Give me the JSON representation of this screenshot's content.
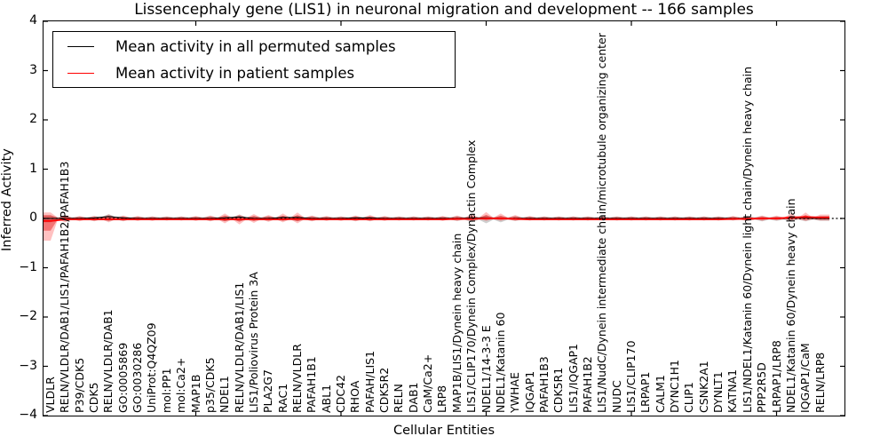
{
  "figure": {
    "title": "Lissencephaly gene (LIS1) in neuronal migration and development -- 166 samples",
    "xlabel": "Cellular Entities",
    "ylabel": "Inferred Activity"
  },
  "legend": {
    "entries": [
      {
        "label": "Mean activity in all permuted samples",
        "color": "#000000"
      },
      {
        "label": "Mean activity in patient samples",
        "color": "#ff0000"
      }
    ]
  },
  "chart_data": {
    "type": "line",
    "title": "Lissencephaly gene (LIS1) in neuronal migration and development -- 166 samples",
    "xlabel": "Cellular Entities",
    "ylabel": "Inferred Activity",
    "ylim": [
      -4,
      4
    ],
    "yticks": [
      4,
      3,
      2,
      1,
      0,
      -1,
      -2,
      -3,
      -4
    ],
    "ytick_labels": [
      "4",
      "3",
      "2",
      "1",
      "0",
      "−1",
      "−2",
      "−3",
      "−4"
    ],
    "xticks_every": 10,
    "xtick_positions": [
      10,
      20,
      30,
      40,
      50
    ],
    "grid": false,
    "zero_line": true,
    "legend_position": "upper left",
    "categories": [
      "VLDLR",
      "RELN/VLDLR/DAB1/LIS1/PAFAH1B2/PAFAH1B3",
      "P39/CDK5",
      "CDK5",
      "RELN/VLDLR/DAB1",
      "GO:0005869",
      "GO:0030286",
      "UniProt:Q4QZ09",
      "mol:PP1",
      "mol:Ca2+",
      "MAP1B",
      "p35/CDK5",
      "NDEL1",
      "RELN/VLDLR/DAB1/LIS1",
      "LIS1/Poliovirus Protein 3A",
      "PLA2G7",
      "RAC1",
      "RELN/VLDLR",
      "PAFAH1B1",
      "ABL1",
      "CDC42",
      "RHOA",
      "PAFAH/LIS1",
      "CDK5R2",
      "RELN",
      "DAB1",
      "CaM/Ca2+",
      "LRP8",
      "MAP1B/LIS1/Dynein heavy chain",
      "LIS1/CLIP170/Dynein Complex/Dynactin Complex",
      "NDEL1/14-3-3 E",
      "NDEL1/Katanin 60",
      "YWHAE",
      "IQGAP1",
      "PAFAH1B3",
      "CDK5R1",
      "LIS1/IQGAP1",
      "PAFAH1B2",
      "LIS1/NudC/Dynein intermediate chain/microtubule organizing center",
      "NUDC",
      "LIS1/CLIP170",
      "LRPAP1",
      "CALM1",
      "DYNC1H1",
      "CLIP1",
      "CSNK2A1",
      "DYNLT1",
      "KATNA1",
      "LIS1/NDEL1/Katanin 60/Dynein light chain/Dynein heavy chain",
      "PPP2R5D",
      "LRPAP1/LRP8",
      "NDEL1/Katanin 60/Dynein heavy chain",
      "IQGAP1/CaM",
      "RELN/LRP8"
    ],
    "series": [
      {
        "name": "Mean activity in all permuted samples",
        "color": "#000000",
        "values": [
          0.0,
          0.0,
          0.0,
          0.01,
          0.04,
          0.01,
          0.0,
          0.0,
          0.0,
          0.0,
          0.0,
          0.0,
          0.01,
          0.03,
          0.0,
          0.0,
          0.02,
          0.02,
          0.0,
          0.0,
          0.0,
          0.01,
          0.01,
          0.0,
          0.0,
          0.0,
          0.0,
          0.0,
          0.0,
          0.01,
          0.01,
          0.0,
          0.0,
          0.0,
          0.0,
          0.0,
          0.0,
          0.0,
          0.0,
          0.0,
          0.0,
          0.0,
          0.0,
          0.0,
          0.0,
          0.0,
          0.0,
          0.0,
          0.0,
          0.0,
          0.0,
          0.01,
          0.01,
          0.0
        ]
      },
      {
        "name": "Mean activity in patient samples",
        "color": "#ff0000",
        "values": [
          -0.05,
          -0.02,
          -0.02,
          -0.02,
          -0.02,
          -0.02,
          -0.02,
          -0.02,
          -0.02,
          -0.02,
          -0.02,
          -0.02,
          -0.02,
          -0.02,
          -0.02,
          -0.02,
          -0.02,
          -0.01,
          -0.02,
          -0.02,
          -0.02,
          -0.02,
          -0.02,
          -0.02,
          -0.02,
          -0.02,
          -0.02,
          -0.02,
          -0.01,
          -0.01,
          0.0,
          0.0,
          -0.01,
          -0.02,
          -0.02,
          -0.02,
          -0.02,
          -0.02,
          -0.02,
          -0.02,
          -0.02,
          -0.02,
          -0.02,
          -0.02,
          -0.02,
          -0.02,
          -0.02,
          -0.01,
          -0.01,
          0.0,
          0.0,
          0.02,
          0.03,
          0.02
        ]
      }
    ],
    "bands": [
      {
        "name": "permuted-samples-range",
        "color": "rgba(130,130,130,0.38)",
        "upper": [
          0.06,
          0.05,
          0.04,
          0.05,
          0.09,
          0.05,
          0.04,
          0.04,
          0.04,
          0.04,
          0.04,
          0.05,
          0.06,
          0.08,
          0.05,
          0.05,
          0.05,
          0.06,
          0.05,
          0.04,
          0.04,
          0.05,
          0.05,
          0.04,
          0.04,
          0.04,
          0.04,
          0.04,
          0.05,
          0.06,
          0.06,
          0.05,
          0.05,
          0.04,
          0.04,
          0.04,
          0.04,
          0.04,
          0.04,
          0.04,
          0.04,
          0.04,
          0.04,
          0.04,
          0.04,
          0.04,
          0.04,
          0.04,
          0.05,
          0.05,
          0.04,
          0.05,
          0.06,
          0.05
        ],
        "lower": [
          -0.08,
          -0.05,
          -0.04,
          -0.05,
          -0.06,
          -0.05,
          -0.04,
          -0.04,
          -0.04,
          -0.04,
          -0.04,
          -0.05,
          -0.06,
          -0.06,
          -0.05,
          -0.05,
          -0.05,
          -0.06,
          -0.05,
          -0.04,
          -0.04,
          -0.05,
          -0.05,
          -0.04,
          -0.04,
          -0.04,
          -0.04,
          -0.04,
          -0.05,
          -0.08,
          -0.1,
          -0.08,
          -0.05,
          -0.04,
          -0.04,
          -0.04,
          -0.04,
          -0.04,
          -0.04,
          -0.04,
          -0.04,
          -0.04,
          -0.04,
          -0.04,
          -0.04,
          -0.04,
          -0.04,
          -0.04,
          -0.06,
          -0.06,
          -0.05,
          -0.06,
          -0.06,
          -0.05
        ]
      },
      {
        "name": "patient-samples-range",
        "color": "rgba(255,50,50,0.30)",
        "upper": [
          0.12,
          0.07,
          0.05,
          0.05,
          0.08,
          0.06,
          0.05,
          0.04,
          0.04,
          0.04,
          0.05,
          0.06,
          0.1,
          0.08,
          0.09,
          0.07,
          0.1,
          0.12,
          0.06,
          0.05,
          0.04,
          0.06,
          0.07,
          0.05,
          0.04,
          0.04,
          0.04,
          0.05,
          0.06,
          0.08,
          0.13,
          0.1,
          0.07,
          0.05,
          0.04,
          0.04,
          0.04,
          0.04,
          0.04,
          0.04,
          0.04,
          0.04,
          0.04,
          0.04,
          0.04,
          0.04,
          0.04,
          0.05,
          0.05,
          0.06,
          0.06,
          0.1,
          0.12,
          0.08
        ],
        "lower": [
          -0.45,
          -0.08,
          -0.06,
          -0.06,
          -0.08,
          -0.06,
          -0.05,
          -0.05,
          -0.04,
          -0.04,
          -0.05,
          -0.06,
          -0.1,
          -0.12,
          -0.09,
          -0.07,
          -0.08,
          -0.1,
          -0.06,
          -0.05,
          -0.05,
          -0.06,
          -0.06,
          -0.05,
          -0.04,
          -0.04,
          -0.04,
          -0.05,
          -0.05,
          -0.06,
          -0.05,
          -0.05,
          -0.05,
          -0.04,
          -0.04,
          -0.04,
          -0.04,
          -0.04,
          -0.04,
          -0.04,
          -0.04,
          -0.04,
          -0.04,
          -0.04,
          -0.04,
          -0.04,
          -0.04,
          -0.04,
          -0.05,
          -0.05,
          -0.04,
          -0.04,
          -0.05,
          -0.04
        ]
      },
      {
        "name": "patient-samples-inner-range",
        "color": "rgba(225,0,0,0.40)",
        "scale_of": "patient-samples-range",
        "scale": 0.55
      }
    ]
  }
}
